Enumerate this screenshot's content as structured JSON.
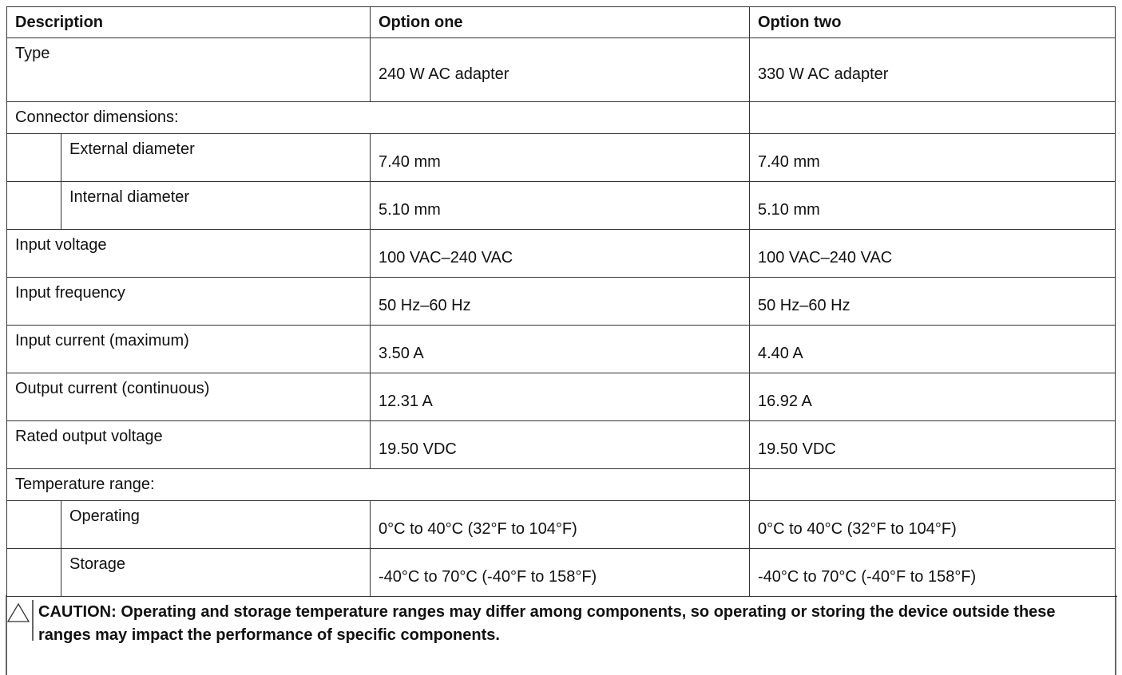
{
  "table": {
    "header": [
      "Description",
      "Option one",
      "Option two"
    ],
    "rows": [
      {
        "label": "Type",
        "values": [
          "240 W AC adapter",
          "330 W AC adapter"
        ]
      },
      {
        "label": "Connector dimensions:",
        "rows": [
          {
            "label": "External diameter",
            "values": [
              "7.40 mm",
              "7.40 mm"
            ]
          },
          {
            "label": "Internal diameter",
            "values": [
              "5.10 mm",
              "5.10 mm"
            ]
          }
        ]
      },
      {
        "label": "Input voltage",
        "values": [
          "100 VAC–240 VAC",
          "100 VAC–240 VAC"
        ]
      },
      {
        "label": "Input frequency",
        "values": [
          "50 Hz–60 Hz",
          "50 Hz–60 Hz"
        ]
      },
      {
        "label": "Input current (maximum)",
        "values": [
          "3.50 A",
          "4.40 A"
        ]
      },
      {
        "label": "Output current (continuous)",
        "values": [
          "12.31 A",
          "16.92 A"
        ]
      },
      {
        "label": "Rated output voltage",
        "values": [
          "19.50 VDC",
          "19.50 VDC"
        ]
      },
      {
        "label": "Temperature range:",
        "rows": [
          {
            "label": "Operating",
            "values": [
              "0°C to 40°C (32°F to 104°F)",
              "0°C to 40°C (32°F to 104°F)"
            ]
          },
          {
            "label": "Storage",
            "values": [
              "-40°C to 70°C (-40°F to 158°F)",
              "-40°C to 70°C (-40°F to 158°F)"
            ]
          }
        ]
      }
    ],
    "caution": "CAUTION: Operating and storage temperature ranges may differ among components, so operating or storing the device outside these ranges may impact the performance of specific components."
  }
}
